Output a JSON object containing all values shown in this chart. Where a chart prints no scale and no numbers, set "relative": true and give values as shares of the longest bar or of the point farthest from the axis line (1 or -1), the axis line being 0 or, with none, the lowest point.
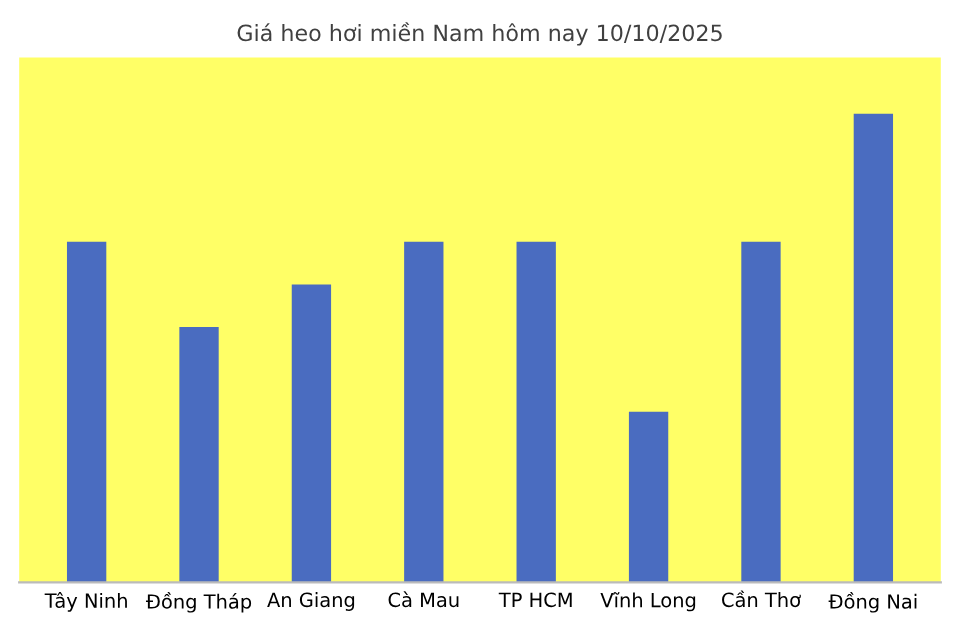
{
  "chart_data": {
    "type": "bar",
    "title": "Giá heo hơi miền Nam hôm nay 10/10/2025",
    "categories": [
      "Tây Ninh",
      "Đồng Tháp",
      "An Giang",
      "Cà Mau",
      "TP HCM",
      "Vĩnh Long",
      "Cần Thơ",
      "Đồng Nai"
    ],
    "values": [
      0.727,
      0.545,
      0.636,
      0.727,
      0.727,
      0.364,
      0.727,
      1
    ],
    "color": "#4a6cc0",
    "relative": true
  }
}
